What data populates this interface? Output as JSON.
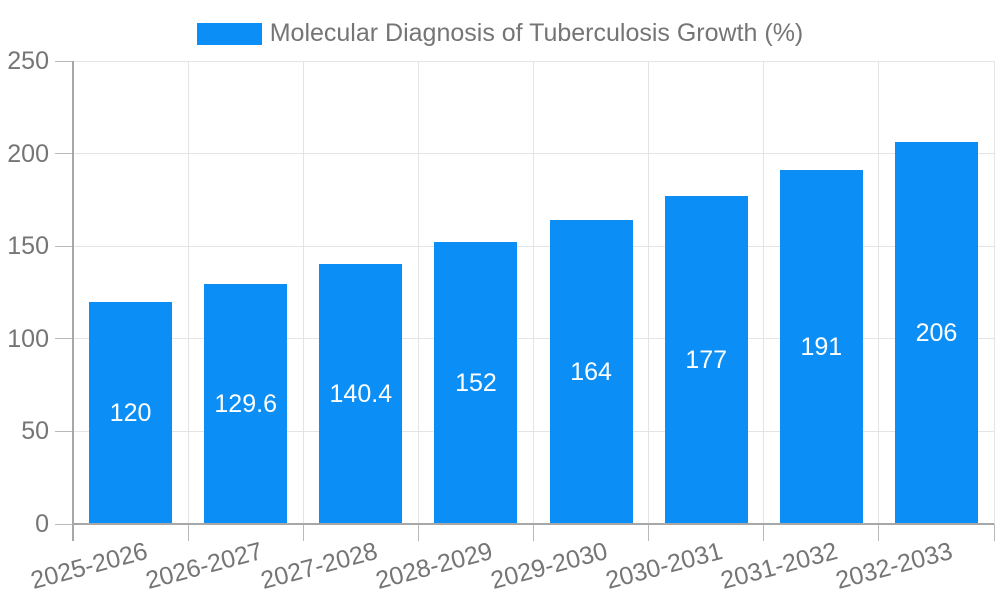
{
  "legend": {
    "label": "Molecular Diagnosis of Tuberculosis Growth (%)"
  },
  "chart_data": {
    "type": "bar",
    "title": "Molecular Diagnosis of Tuberculosis Growth (%)",
    "categories": [
      "2025-2026",
      "2026-2027",
      "2027-2028",
      "2028-2029",
      "2029-2030",
      "2030-2031",
      "2031-2032",
      "2032-2033"
    ],
    "values": [
      120,
      129.6,
      140.4,
      152,
      164,
      177,
      191,
      206
    ],
    "value_labels": [
      "120",
      "129.6",
      "140.4",
      "152",
      "164",
      "177",
      "191",
      "206"
    ],
    "xlabel": "",
    "ylabel": "",
    "ylim": [
      0,
      250
    ],
    "yticks": [
      0,
      50,
      100,
      150,
      200,
      250
    ],
    "grid": "on",
    "legend_position": "top-center",
    "colors": {
      "bar": "#0b8ff7",
      "value_label": "#ffffff",
      "axis_label": "#757575",
      "gridline": "#e4e4e4",
      "tick": "#b9b9b9",
      "axis_line": "#a7a7a7",
      "background": "#ffffff"
    }
  }
}
